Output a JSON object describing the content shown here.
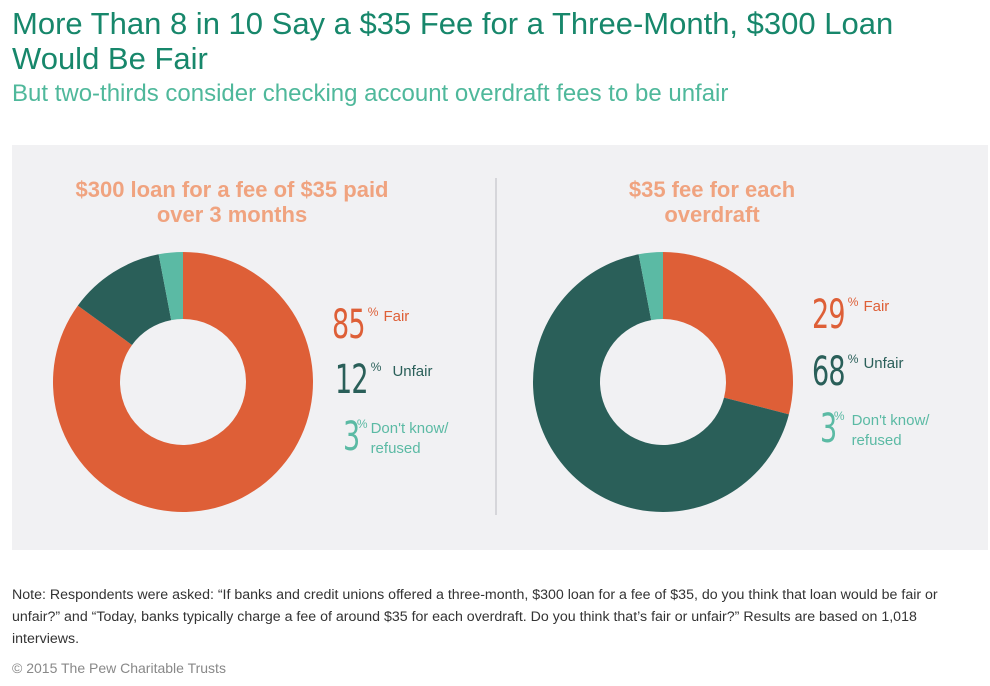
{
  "title": "More Than 8 in 10 Say a $35 Fee for a Three-Month, $300 Loan Would Be Fair",
  "subtitle": "But two-thirds consider checking account overdraft fees to be unfair",
  "colors": {
    "fair": "#de5f37",
    "unfair": "#2a5f59",
    "dk": "#5bbaa4"
  },
  "chart_data": [
    {
      "type": "pie",
      "title": "$300 loan for a fee of $35 paid over 3 months",
      "categories": [
        "Fair",
        "Unfair",
        "Don't know/ refused"
      ],
      "values": [
        85,
        12,
        3
      ],
      "unit": "%"
    },
    {
      "type": "pie",
      "title": "$35 fee for each overdraft",
      "categories": [
        "Fair",
        "Unfair",
        "Don't know/ refused"
      ],
      "values": [
        29,
        68,
        3
      ],
      "unit": "%"
    }
  ],
  "legend": {
    "pct": "%",
    "fair": "Fair",
    "unfair": "Unfair",
    "dk_line1": "Don't know/",
    "dk_line2": "refused"
  },
  "note": "Note:  Respondents were asked: “If banks and credit unions offered a three-month, $300 loan for a fee of $35, do you think that loan would be fair or unfair?” and “Today, banks typically charge a fee of around $35 for each overdraft. Do you think that’s fair or unfair?” Results are based on 1,018 interviews.",
  "copyright": "© 2015 The Pew Charitable Trusts"
}
